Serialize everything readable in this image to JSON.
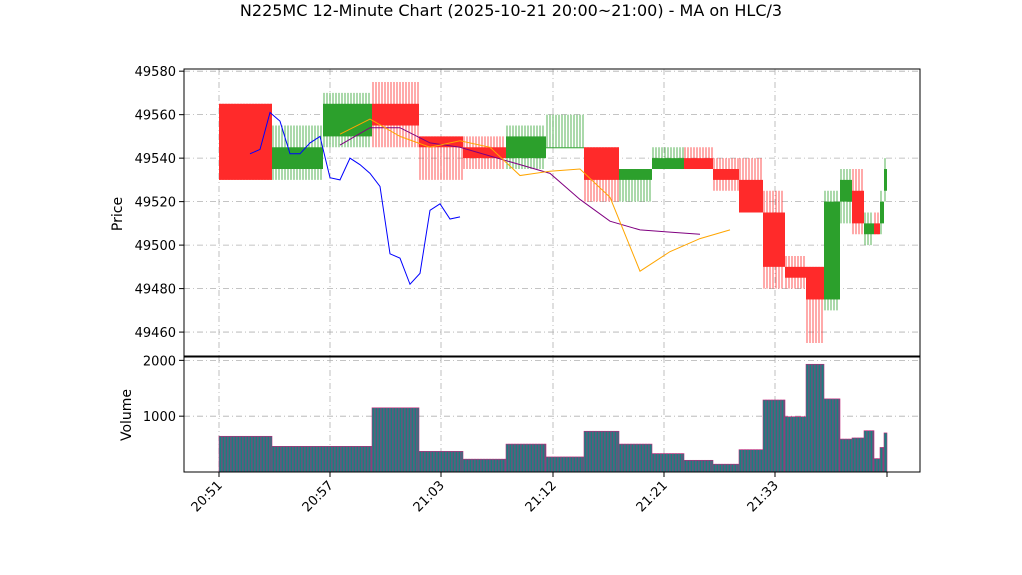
{
  "chart_data": {
    "type": "candlestick",
    "title": "N225MC 12-Minute Chart (2025-10-21 20:00~21:00) - MA on HLC/3",
    "xlabel": "",
    "grid": true,
    "price_panel": {
      "ylabel": "Price",
      "ylim": [
        49449,
        49581
      ],
      "yticks": [
        49460,
        49480,
        49500,
        49520,
        49540,
        49560,
        49580
      ],
      "up_color": "#2ca02c",
      "down_color": "#ff2a2a",
      "ma_fast_color": "#0000ff",
      "ma_mid_color": "#ffa500",
      "ma_slow_color": "#800080"
    },
    "volume_panel": {
      "ylabel": "Volume",
      "ylim": [
        0,
        2060
      ],
      "yticks": [
        1000,
        2000
      ],
      "bar_color": "#1a7f7f",
      "edge_color": "#c0267a"
    },
    "x_tick_labels": [
      "20:51",
      "20:57",
      "21:03",
      "21:12",
      "21:21",
      "21:33"
    ],
    "candles": [
      {
        "t": "20:51",
        "open": 49565,
        "high": 49565,
        "low": 49530,
        "close": 49530,
        "volume": 640
      },
      {
        "t": "20:54",
        "open": 49535,
        "high": 49555,
        "low": 49530,
        "close": 49545,
        "volume": 460
      },
      {
        "t": "20:57",
        "open": 49550,
        "high": 49570,
        "low": 49545,
        "close": 49565,
        "volume": 460
      },
      {
        "t": "21:00",
        "open": 49565,
        "high": 49575,
        "low": 49545,
        "close": 49555,
        "volume": 1150
      },
      {
        "t": "21:03",
        "open": 49550,
        "high": 49550,
        "low": 49530,
        "close": 49545,
        "volume": 370
      },
      {
        "t": "21:06",
        "open": 49545,
        "high": 49550,
        "low": 49535,
        "close": 49540,
        "volume": 230
      },
      {
        "t": "21:09",
        "open": 49540,
        "high": 49555,
        "low": 49535,
        "close": 49550,
        "volume": 500
      },
      {
        "t": "21:12",
        "open": 49545,
        "high": 49560,
        "low": 49545,
        "close": 49545,
        "volume": 270
      },
      {
        "t": "21:15",
        "open": 49545,
        "high": 49545,
        "low": 49520,
        "close": 49530,
        "volume": 730
      },
      {
        "t": "21:18",
        "open": 49530,
        "high": 49535,
        "low": 49520,
        "close": 49535,
        "volume": 500
      },
      {
        "t": "21:21",
        "open": 49535,
        "high": 49545,
        "low": 49535,
        "close": 49540,
        "volume": 330
      },
      {
        "t": "21:24",
        "open": 49540,
        "high": 49545,
        "low": 49535,
        "close": 49535,
        "volume": 210
      },
      {
        "t": "21:27",
        "open": 49535,
        "high": 49540,
        "low": 49525,
        "close": 49530,
        "volume": 140
      },
      {
        "t": "21:30",
        "open": 49530,
        "high": 49540,
        "low": 49515,
        "close": 49515,
        "volume": 400
      },
      {
        "t": "21:33",
        "open": 49515,
        "high": 49525,
        "low": 49480,
        "close": 49490,
        "volume": 1290
      },
      {
        "t": "21:35",
        "open": 49490,
        "high": 49495,
        "low": 49480,
        "close": 49485,
        "volume": 990
      },
      {
        "t": "21:37",
        "open": 49490,
        "high": 49490,
        "low": 49455,
        "close": 49475,
        "volume": 1930
      },
      {
        "t": "21:39",
        "open": 49475,
        "high": 49525,
        "low": 49470,
        "close": 49520,
        "volume": 1310
      },
      {
        "t": "21:40",
        "open": 49520,
        "high": 49535,
        "low": 49510,
        "close": 49530,
        "volume": 590
      },
      {
        "t": "21:41",
        "open": 49525,
        "high": 49535,
        "low": 49505,
        "close": 49510,
        "volume": 610
      },
      {
        "t": "21:42",
        "open": 49505,
        "high": 49515,
        "low": 49500,
        "close": 49510,
        "volume": 740
      },
      {
        "t": "21:43",
        "open": 49510,
        "high": 49515,
        "low": 49505,
        "close": 49505,
        "volume": 240
      },
      {
        "t": "21:44",
        "open": 49510,
        "high": 49525,
        "low": 49505,
        "close": 49520,
        "volume": 440
      },
      {
        "t": "21:45",
        "open": 49525,
        "high": 49540,
        "low": 49520,
        "close": 49535,
        "volume": 700
      }
    ],
    "ma_fast": [
      [
        49542,
        49542
      ],
      [
        49544,
        49544
      ],
      [
        49561,
        49561
      ],
      [
        49557,
        49557
      ],
      [
        49542,
        49542
      ],
      [
        49542,
        49542
      ],
      [
        49547,
        49547
      ],
      [
        49550,
        49550
      ],
      [
        49531,
        49531
      ],
      [
        49530,
        49530
      ],
      [
        49540,
        49540
      ],
      [
        49537,
        49537
      ],
      [
        49533,
        49533
      ],
      [
        49527,
        49527
      ],
      [
        49496,
        49496
      ],
      [
        49494,
        49494
      ],
      [
        49482,
        49482
      ],
      [
        49487,
        49487
      ],
      [
        49516,
        49516
      ],
      [
        49519,
        49519
      ],
      [
        49512,
        49512
      ],
      [
        49513,
        49513
      ]
    ],
    "ma_mid": [
      [
        49551,
        49551
      ],
      [
        49558,
        49558
      ],
      [
        49550,
        49550
      ],
      [
        49545,
        49545
      ],
      [
        49548,
        49548
      ],
      [
        49545,
        49545
      ],
      [
        49532,
        49532
      ],
      [
        49534,
        49534
      ],
      [
        49535,
        49535
      ],
      [
        49522,
        49522
      ],
      [
        49488,
        49488
      ],
      [
        49497,
        49497
      ],
      [
        49503,
        49503
      ],
      [
        49507,
        49507
      ]
    ],
    "ma_slow": [
      [
        49546,
        49546
      ],
      [
        49554,
        49554
      ],
      [
        49554,
        49554
      ],
      [
        49547,
        49547
      ],
      [
        49545,
        49545
      ],
      [
        49541,
        49541
      ],
      [
        49537,
        49537
      ],
      [
        49533,
        49533
      ],
      [
        49521,
        49521
      ],
      [
        49511,
        49511
      ],
      [
        49507,
        49507
      ],
      [
        49506,
        49506
      ],
      [
        49505,
        49505
      ]
    ]
  }
}
